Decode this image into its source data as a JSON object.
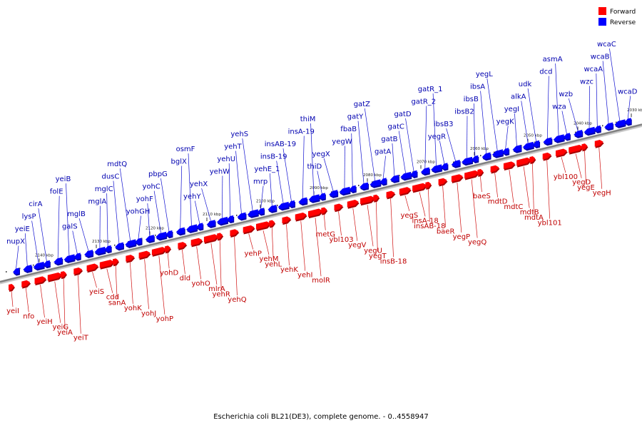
{
  "caption": "Escherichia coli BL21(DE3), complete genome. - 0..4558947",
  "legend": [
    {
      "label": "Forward",
      "color": "#ff0000"
    },
    {
      "label": "Reverse",
      "color": "#0000ff"
    }
  ],
  "colors": {
    "forward_text": "#c00000",
    "reverse_text": "#0000b0",
    "axis": "#808080"
  },
  "ticks": [
    "2140 kbp",
    "2130 kbp",
    "2120 kbp",
    "2110 kbp",
    "2100 kbp",
    "2090 kbp",
    "2080 kbp",
    "2070 kbp",
    "2060 kbp",
    "2050 kbp",
    "2040 kbp",
    "2030 kbp"
  ],
  "reverse_genes": [
    "nupX",
    "yeiE",
    "lysP",
    "cirA",
    "folE",
    "yeiB",
    "galS",
    "mglB",
    "mglA",
    "mglC",
    "dusC",
    "mdtQ",
    "yohGH",
    "yohF",
    "yohC",
    "pbpG",
    "bglX",
    "osmF",
    "yehY",
    "yehX",
    "yehW",
    "yehU",
    "yehT",
    "yehS",
    "mrp",
    "yehE_1",
    "insB-19",
    "insAB-19",
    "insA-19",
    "thiM",
    "thiD",
    "yegX",
    "yegW",
    "fbaB",
    "gatY",
    "gatZ",
    "gatA",
    "gatB",
    "gatC",
    "gatD",
    "gatR_2",
    "gatR_1",
    "yegR",
    "ibsB3",
    "ibsB2",
    "ibsB",
    "ibsA",
    "yegL",
    "yegK",
    "yegI",
    "alkA",
    "udk",
    "dcd",
    "asmA",
    "wza",
    "wzb",
    "wzc",
    "wcaA",
    "wcaB",
    "wcaC",
    "wcaD"
  ],
  "forward_genes": [
    "yeiI",
    "nfo",
    "yeiH",
    "yeiG",
    "yeiA",
    "yeiT",
    "yeiS",
    "cdd",
    "sanA",
    "yohK",
    "yohJ",
    "yohP",
    "yohD",
    "dld",
    "yohO",
    "mlrA",
    "yehR",
    "yehQ",
    "yehP",
    "yehM",
    "yehL",
    "yehK",
    "yehI",
    "molR",
    "metG",
    "ybl103",
    "yegV",
    "yegU",
    "yegT",
    "insB-18",
    "yegS",
    "insA-18",
    "insAB-18",
    "baeR",
    "yegP",
    "yegQ",
    "baeS",
    "mdtD",
    "mdtC",
    "mdtB",
    "mdtA",
    "ybl101",
    "ybl100",
    "yegD",
    "yegE",
    "yegH"
  ]
}
